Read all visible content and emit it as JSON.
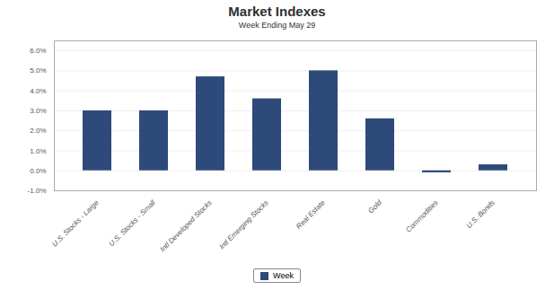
{
  "chart_data": {
    "type": "bar",
    "title": "Market Indexes",
    "subtitle": "Week Ending May 29",
    "categories": [
      "U.S. Stocks - Large",
      "U.S. Stocks - Small",
      "Intl Developed Stocks",
      "Intl Emerging Stocks",
      "Real Estate",
      "Gold",
      "Commodities",
      "U.S. Bonds"
    ],
    "series": [
      {
        "name": "Week",
        "color": "#2E4A7A",
        "values": [
          0.03,
          0.03,
          0.047,
          0.036,
          0.05,
          0.026,
          -0.001,
          0.003
        ]
      }
    ],
    "ylim": [
      -0.01,
      0.065
    ],
    "yticks": [
      {
        "value": -0.01,
        "label": "-1.0%"
      },
      {
        "value": 0.0,
        "label": "0.0%"
      },
      {
        "value": 0.01,
        "label": "1.0%"
      },
      {
        "value": 0.02,
        "label": "2.0%"
      },
      {
        "value": 0.03,
        "label": "3.0%"
      },
      {
        "value": 0.04,
        "label": "4.0%"
      },
      {
        "value": 0.05,
        "label": "5.0%"
      },
      {
        "value": 0.06,
        "label": "6.0%"
      }
    ],
    "grid": true,
    "legend": "bottom"
  }
}
